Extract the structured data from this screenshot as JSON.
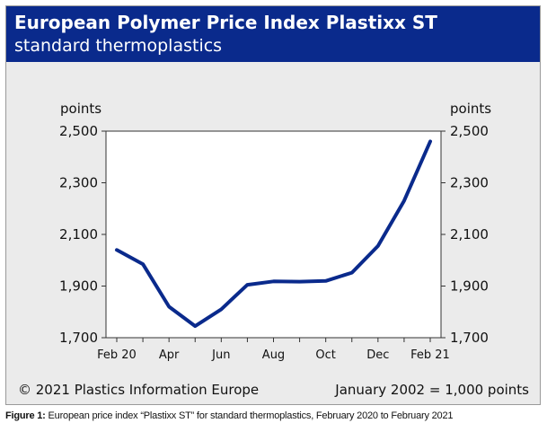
{
  "header": {
    "title": "European Polymer Price Index Plastixx ST",
    "subtitle": "standard thermoplastics"
  },
  "footer": {
    "copyright": "© 2021 Plastics Information Europe",
    "baseline": "January 2002 = 1,000 points"
  },
  "caption": {
    "label": "Figure 1:",
    "text": "European price index “Plastixx ST” for standard thermoplastics, February 2020 to February 2021"
  },
  "colors": {
    "header_bg": "#0a2a8c",
    "line": "#0a2a8c",
    "panel_bg": "#ebebeb"
  },
  "chart_data": {
    "type": "line",
    "title": "European Polymer Price Index Plastixx ST",
    "subtitle": "standard thermoplastics",
    "ylabel_left": "points",
    "ylabel_right": "points",
    "x": [
      "Feb 20",
      "Mar 20",
      "Apr 20",
      "May 20",
      "Jun 20",
      "Jul 20",
      "Aug 20",
      "Sep 20",
      "Oct 20",
      "Nov 20",
      "Dec 20",
      "Jan 21",
      "Feb 21"
    ],
    "x_tick_labels": [
      "Feb 20",
      "Apr",
      "Jun",
      "Aug",
      "Oct",
      "Dec",
      "Feb 21"
    ],
    "x_tick_indices": [
      0,
      2,
      4,
      6,
      8,
      10,
      12
    ],
    "series": [
      {
        "values": [
          2040,
          1985,
          1820,
          1745,
          1810,
          1905,
          1918,
          1917,
          1920,
          1952,
          2055,
          2230,
          2460
        ]
      }
    ],
    "ylim": [
      1700,
      2500
    ],
    "yticks": [
      1700,
      1900,
      2100,
      2300,
      2500
    ],
    "ytick_labels": [
      "1,700",
      "1,900",
      "2,100",
      "2,300",
      "2,500"
    ],
    "grid": false,
    "legend": "none"
  }
}
